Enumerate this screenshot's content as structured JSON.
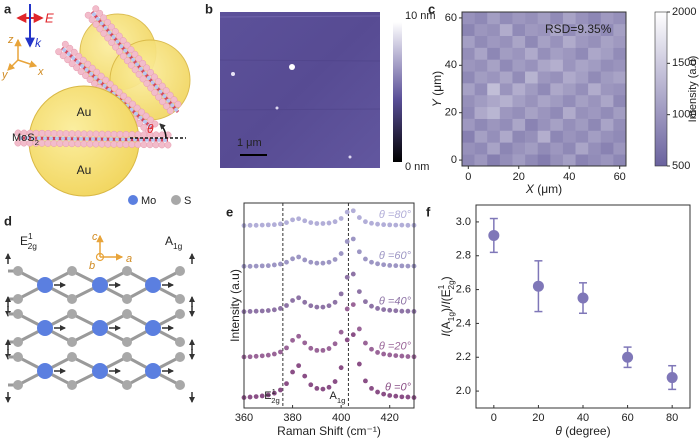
{
  "panel_labels": [
    "a",
    "b",
    "c",
    "d",
    "e",
    "f"
  ],
  "schematic_a": {
    "field_label": "E",
    "wave_label": "k",
    "axis_labels": [
      "z",
      "y",
      "x"
    ],
    "gold_labels": [
      "Au",
      "Au"
    ],
    "flake_label": {
      "base": "MoS",
      "sub": "2"
    },
    "angle_label": "θ",
    "legend": [
      "Mo",
      "S"
    ]
  },
  "afm_b": {
    "scale_bar": "1 μm",
    "colorbar_max": "10 nm",
    "colorbar_min": "0 nm"
  },
  "lattice_d": {
    "mode_left": {
      "base": "E",
      "sup": "1",
      "sub": "2g"
    },
    "mode_right": {
      "base": "A",
      "sub": "1g"
    },
    "axis_labels": [
      "c",
      "a",
      "b"
    ]
  },
  "chart_data": [
    {
      "type": "heatmap",
      "annotation": "RSD=9.35%",
      "x_label": [
        {
          "text": "X",
          "role": "italic"
        },
        {
          "text": " (μm)",
          "role": "normal"
        }
      ],
      "y_label": [
        {
          "text": "Y",
          "role": "italic"
        },
        {
          "text": " (μm)",
          "role": "normal"
        }
      ],
      "colorbar_label": "Intensity (a.u)",
      "x": [
        0,
        5,
        10,
        15,
        20,
        25,
        30,
        35,
        40,
        45,
        50,
        55,
        60
      ],
      "y": [
        0,
        5,
        10,
        15,
        20,
        25,
        30,
        35,
        40,
        45,
        50,
        55,
        60
      ],
      "values": [
        [
          860,
          1010,
          780,
          920,
          1050,
          880,
          760,
          940,
          1080,
          820,
          900,
          990,
          850
        ],
        [
          950,
          880,
          1120,
          840,
          970,
          1060,
          890,
          1010,
          870,
          1140,
          930,
          810,
          1000
        ],
        [
          790,
          1090,
          930,
          1180,
          860,
          940,
          1230,
          850,
          980,
          900,
          1070,
          950,
          880
        ],
        [
          1020,
          870,
          1000,
          910,
          1150,
          820,
          960,
          1100,
          930,
          1040,
          860,
          1130,
          920
        ],
        [
          880,
          1180,
          1300,
          1010,
          930,
          1110,
          990,
          880,
          1200,
          950,
          1020,
          900,
          1060
        ],
        [
          940,
          1050,
          1160,
          1250,
          1080,
          970,
          1130,
          1040,
          910,
          1090,
          980,
          1150,
          870
        ],
        [
          1100,
          910,
          1380,
          980,
          1220,
          1040,
          880,
          1170,
          1060,
          930,
          1210,
          1000,
          960
        ],
        [
          870,
          1060,
          990,
          1140,
          900,
          1280,
          1010,
          950,
          1190,
          1080,
          890,
          1040,
          1120
        ],
        [
          1000,
          940,
          1110,
          880,
          1050,
          960,
          1150,
          1240,
          990,
          1130,
          1050,
          920,
          980
        ],
        [
          920,
          1130,
          850,
          1060,
          990,
          1190,
          930,
          1080,
          1010,
          880,
          1160,
          1070,
          900
        ],
        [
          1080,
          890,
          1020,
          950,
          1140,
          870,
          1100,
          960,
          1200,
          1020,
          940,
          1110,
          1030
        ],
        [
          830,
          1000,
          940,
          1210,
          880,
          1030,
          980,
          1150,
          900,
          1070,
          1010,
          880,
          1090
        ],
        [
          960,
          870,
          1070,
          900,
          1010,
          940,
          1060,
          890,
          1120,
          960,
          850,
          1030,
          940
        ]
      ],
      "xlim": [
        -2.5,
        62.5
      ],
      "ylim": [
        -2.5,
        62.5
      ],
      "xticks": [
        0,
        20,
        40,
        60
      ],
      "yticks": [
        0,
        20,
        40,
        60
      ],
      "clim": [
        500,
        2000
      ],
      "cticks": [
        500,
        1000,
        1500,
        2000
      ],
      "colors": [
        "#6a629e",
        "#ffffff"
      ]
    },
    {
      "type": "spectra",
      "x_label": "Raman Shift (cm⁻¹)",
      "y_label": "Intensity (a.u)",
      "x": [
        360,
        362.5,
        365,
        367.5,
        370,
        372.5,
        375,
        377.5,
        380,
        382.5,
        385,
        387.5,
        390,
        392.5,
        395,
        397.5,
        400,
        402.5,
        405,
        407.5,
        410,
        412.5,
        415,
        417.5,
        420,
        422.5,
        425,
        427.5,
        430
      ],
      "series": [
        {
          "name": "θ =0°",
          "color": "#8a4f86",
          "values": [
            4.6,
            4.8,
            5.0,
            5.3,
            5.7,
            6.5,
            7.9,
            10.7,
            15.8,
            18.6,
            14.0,
            10.2,
            8.6,
            8.3,
            9.1,
            11.6,
            17.7,
            29.9,
            32.2,
            19.3,
            11.9,
            8.6,
            7.0,
            6.1,
            5.5,
            5.2,
            4.9,
            4.8,
            4.6
          ]
        },
        {
          "name": "θ =20°",
          "color": "#9a6598",
          "values": [
            22.4,
            22.5,
            22.7,
            22.9,
            23.2,
            23.7,
            24.6,
            26.4,
            29.7,
            31.5,
            28.6,
            26.2,
            25.3,
            25.3,
            26.1,
            28.2,
            33.3,
            43.5,
            45.4,
            34.7,
            28.5,
            25.8,
            24.4,
            23.7,
            23.3,
            23.0,
            22.8,
            22.6,
            22.5
          ]
        },
        {
          "name": "θ =40°",
          "color": "#8e74a6",
          "values": [
            42.3,
            42.4,
            42.5,
            42.6,
            42.8,
            43.1,
            43.7,
            45.0,
            47.2,
            48.4,
            46.4,
            44.9,
            44.3,
            44.3,
            44.9,
            46.4,
            50.1,
            57.4,
            58.8,
            51.1,
            46.7,
            44.7,
            43.7,
            43.2,
            42.9,
            42.7,
            42.5,
            42.5,
            42.4
          ]
        },
        {
          "name": "θ =60°",
          "color": "#9d96c4",
          "values": [
            62.2,
            62.2,
            62.3,
            62.4,
            62.5,
            62.8,
            63.2,
            64.0,
            65.5,
            66.3,
            65.0,
            64.0,
            63.6,
            63.6,
            64.0,
            65.2,
            67.8,
            73.1,
            74.2,
            68.6,
            65.4,
            64.0,
            63.3,
            62.9,
            62.6,
            62.5,
            62.4,
            62.3,
            62.3
          ]
        },
        {
          "name": "θ =80°",
          "color": "#b2aed8",
          "values": [
            80.1,
            80.2,
            80.2,
            80.3,
            80.4,
            80.5,
            80.8,
            81.4,
            82.6,
            83.1,
            82.2,
            81.4,
            81.0,
            81.0,
            81.2,
            81.8,
            83.2,
            86.0,
            86.6,
            83.6,
            81.8,
            81.1,
            80.7,
            80.5,
            80.4,
            80.3,
            80.3,
            80.2,
            80.2
          ]
        }
      ],
      "vlines": [
        376,
        403
      ],
      "peak_labels": [
        {
          "base": "E",
          "sup": "1",
          "sub": "2g"
        },
        {
          "base": "A",
          "sub": "1g"
        }
      ],
      "xlim": [
        360,
        430
      ],
      "ylim": [
        0,
        90
      ],
      "xticks": [
        360,
        380,
        400,
        420
      ]
    },
    {
      "type": "errorbar",
      "color": "#7f77b8",
      "x_label": [
        {
          "text": "θ",
          "role": "italic"
        },
        {
          "text": " (degree)",
          "role": "normal"
        }
      ],
      "y_label": [
        {
          "text": "I",
          "role": "italic"
        },
        {
          "text": "(A",
          "role": "normal"
        },
        {
          "text": "1g",
          "role": "sub"
        },
        {
          "text": ")/",
          "role": "normal"
        },
        {
          "text": "I",
          "role": "italic"
        },
        {
          "text": "(E",
          "role": "normal"
        },
        {
          "text": "1",
          "role": "sup"
        },
        {
          "text": "2g",
          "role": "sub"
        },
        {
          "text": ")",
          "role": "normal"
        }
      ],
      "x": [
        0,
        20,
        40,
        60,
        80
      ],
      "values": [
        2.92,
        2.62,
        2.55,
        2.2,
        2.08
      ],
      "errors": [
        0.1,
        0.15,
        0.09,
        0.06,
        0.07
      ],
      "xlim": [
        -8,
        88
      ],
      "ylim": [
        1.9,
        3.1
      ],
      "xticks": [
        0,
        20,
        40,
        60,
        80
      ],
      "yticks": [
        {
          "value": 2,
          "label": "2.0"
        },
        2.2,
        2.4,
        2.6,
        2.8,
        {
          "value": 3,
          "label": "3.0"
        }
      ]
    }
  ]
}
